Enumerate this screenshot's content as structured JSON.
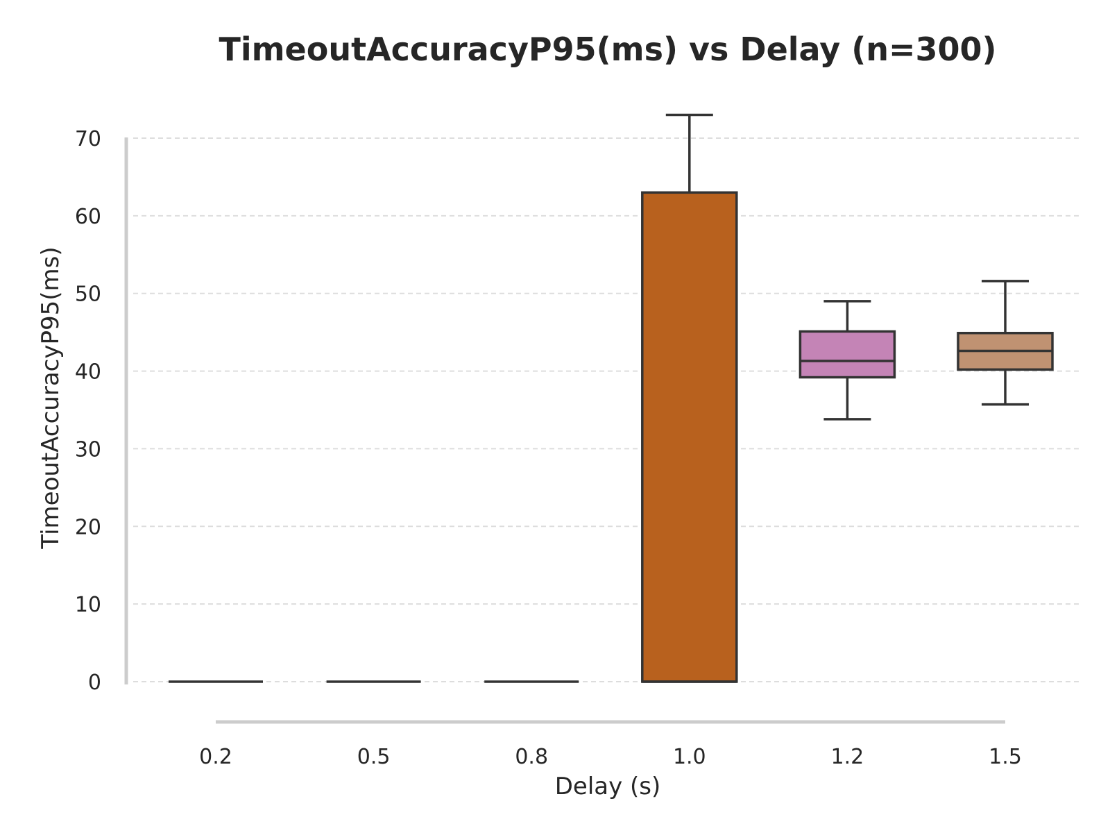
{
  "chart_data": {
    "type": "box",
    "title": "TimeoutAccuracyP95(ms) vs Delay (n=300)",
    "xlabel": "Delay (s)",
    "ylabel": "TimeoutAccuracyP95(ms)",
    "ylim": [
      -1.5,
      75
    ],
    "yticks": [
      0,
      10,
      20,
      30,
      40,
      50,
      60,
      70
    ],
    "grid": "y, dashed",
    "categories": [
      "0.2",
      "0.5",
      "0.8",
      "1.0",
      "1.2",
      "1.5"
    ],
    "boxes": [
      {
        "category": "0.2",
        "whislo": 0,
        "q1": 0,
        "med": 0,
        "q3": 0,
        "whishi": 0,
        "color": "#6f8fc9"
      },
      {
        "category": "0.5",
        "whislo": 0,
        "q1": 0,
        "med": 0,
        "q3": 0,
        "whishi": 0,
        "color": "#d98a5a"
      },
      {
        "category": "0.8",
        "whislo": 0,
        "q1": 0,
        "med": 0,
        "q3": 0,
        "whishi": 0,
        "color": "#6fbf8f"
      },
      {
        "category": "1.0",
        "whislo": 0,
        "q1": 0,
        "med": 0,
        "q3": 63,
        "whishi": 73,
        "color": "#b8611e"
      },
      {
        "category": "1.2",
        "whislo": 33.8,
        "q1": 39.2,
        "med": 41.3,
        "q3": 45.1,
        "whishi": 49,
        "color": "#c484b6"
      },
      {
        "category": "1.5",
        "whislo": 35.7,
        "q1": 40.2,
        "med": 42.6,
        "q3": 44.9,
        "whishi": 51.6,
        "color": "#c09272"
      }
    ]
  }
}
